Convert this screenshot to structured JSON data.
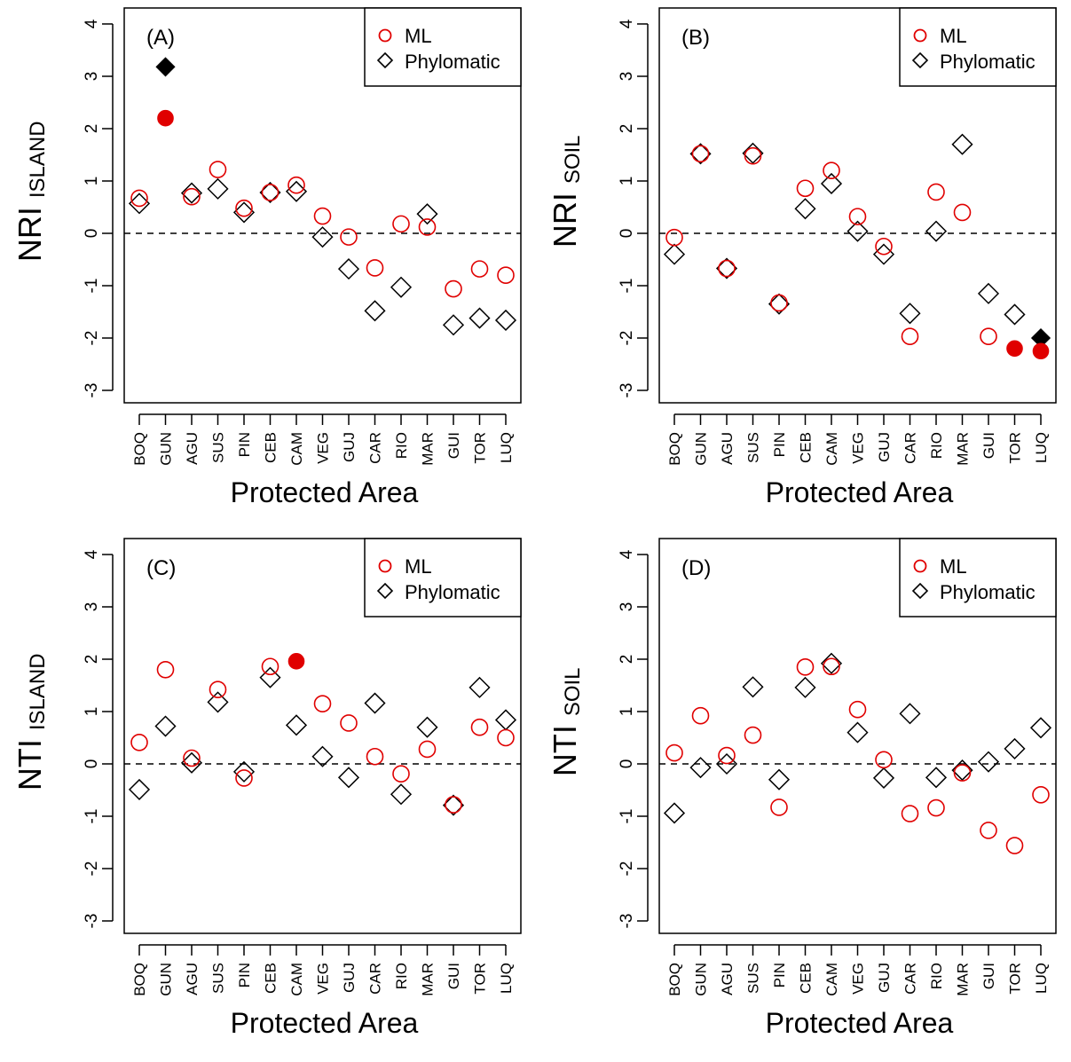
{
  "chart_data": [
    {
      "type": "scatter",
      "panel_label": "(A)",
      "ylabel_main": "NRI",
      "ylabel_sub": "ISLAND",
      "xlabel": "Protected Area",
      "ylim": [
        -3,
        4
      ],
      "yticks": [
        "-3",
        "-2",
        "-1",
        "0",
        "1",
        "2",
        "3",
        "4"
      ],
      "categories": [
        "BOQ",
        "GUN",
        "AGU",
        "SUS",
        "PIN",
        "CEB",
        "CAM",
        "VEG",
        "GUJ",
        "CAR",
        "RIO",
        "MAR",
        "GUI",
        "TOR",
        "LUQ"
      ],
      "legend": [
        "ML",
        "Phylomatic"
      ],
      "legend_position": "top-right",
      "reference_line": 0,
      "series": [
        {
          "name": "ML",
          "marker": "circle",
          "color": "#e00000",
          "values": [
            0.67,
            2.2,
            0.7,
            1.22,
            0.48,
            0.78,
            0.92,
            0.33,
            -0.07,
            -0.66,
            0.18,
            0.12,
            -1.06,
            -0.68,
            -0.8
          ],
          "filled": [
            false,
            true,
            false,
            false,
            false,
            false,
            false,
            false,
            false,
            false,
            false,
            false,
            false,
            false,
            false
          ]
        },
        {
          "name": "Phylomatic",
          "marker": "diamond",
          "color": "#000000",
          "values": [
            0.57,
            3.18,
            0.77,
            0.85,
            0.4,
            0.78,
            0.8,
            -0.07,
            -0.68,
            -1.48,
            -1.03,
            0.37,
            -1.75,
            -1.62,
            -1.66
          ],
          "filled": [
            false,
            true,
            false,
            false,
            false,
            false,
            false,
            false,
            false,
            false,
            false,
            false,
            false,
            false,
            false
          ]
        }
      ]
    },
    {
      "type": "scatter",
      "panel_label": "(B)",
      "ylabel_main": "NRI",
      "ylabel_sub": "SOIL",
      "xlabel": "Protected Area",
      "ylim": [
        -3,
        4
      ],
      "yticks": [
        "-3",
        "-2",
        "-1",
        "0",
        "1",
        "2",
        "3",
        "4"
      ],
      "categories": [
        "BOQ",
        "GUN",
        "AGU",
        "SUS",
        "PIN",
        "CEB",
        "CAM",
        "VEG",
        "GUJ",
        "CAR",
        "RIO",
        "MAR",
        "GUI",
        "TOR",
        "LUQ"
      ],
      "legend": [
        "ML",
        "Phylomatic"
      ],
      "legend_position": "top-right",
      "reference_line": 0,
      "series": [
        {
          "name": "ML",
          "marker": "circle",
          "color": "#e00000",
          "values": [
            -0.08,
            1.52,
            -0.67,
            1.48,
            -1.33,
            0.86,
            1.2,
            0.32,
            -0.25,
            -1.97,
            0.79,
            0.4,
            -1.97,
            -2.2,
            -2.25
          ],
          "filled": [
            false,
            false,
            false,
            false,
            false,
            false,
            false,
            false,
            false,
            false,
            false,
            false,
            false,
            true,
            true
          ]
        },
        {
          "name": "Phylomatic",
          "marker": "diamond",
          "color": "#000000",
          "values": [
            -0.4,
            1.52,
            -0.67,
            1.53,
            -1.35,
            0.47,
            0.95,
            0.04,
            -0.4,
            -1.53,
            0.04,
            1.7,
            -1.15,
            -1.55,
            -2.0
          ],
          "filled": [
            false,
            false,
            false,
            false,
            false,
            false,
            false,
            false,
            false,
            false,
            false,
            false,
            false,
            false,
            true
          ]
        }
      ]
    },
    {
      "type": "scatter",
      "panel_label": "(C)",
      "ylabel_main": "NTI",
      "ylabel_sub": "ISLAND",
      "xlabel": "Protected Area",
      "ylim": [
        -3,
        4
      ],
      "yticks": [
        "-3",
        "-2",
        "-1",
        "0",
        "1",
        "2",
        "3",
        "4"
      ],
      "categories": [
        "BOQ",
        "GUN",
        "AGU",
        "SUS",
        "PIN",
        "CEB",
        "CAM",
        "VEG",
        "GUJ",
        "CAR",
        "RIO",
        "MAR",
        "GUI",
        "TOR",
        "LUQ"
      ],
      "legend": [
        "ML",
        "Phylomatic"
      ],
      "legend_position": "top-right",
      "reference_line": 0,
      "series": [
        {
          "name": "ML",
          "marker": "circle",
          "color": "#e00000",
          "values": [
            0.41,
            1.8,
            0.11,
            1.42,
            -0.27,
            1.86,
            1.96,
            1.15,
            0.78,
            0.14,
            -0.19,
            0.28,
            -0.78,
            0.7,
            0.5
          ],
          "filled": [
            false,
            false,
            false,
            false,
            false,
            false,
            true,
            false,
            false,
            false,
            false,
            false,
            false,
            false,
            false
          ]
        },
        {
          "name": "Phylomatic",
          "marker": "diamond",
          "color": "#000000",
          "values": [
            -0.49,
            0.72,
            0.02,
            1.18,
            -0.15,
            1.65,
            0.74,
            0.14,
            -0.26,
            1.16,
            -0.58,
            0.7,
            -0.79,
            1.46,
            0.84
          ],
          "filled": [
            false,
            false,
            false,
            false,
            false,
            false,
            false,
            false,
            false,
            false,
            false,
            false,
            false,
            false,
            false
          ]
        }
      ]
    },
    {
      "type": "scatter",
      "panel_label": "(D)",
      "ylabel_main": "NTI",
      "ylabel_sub": "SOIL",
      "xlabel": "Protected Area",
      "ylim": [
        -3,
        4
      ],
      "yticks": [
        "-3",
        "-2",
        "-1",
        "0",
        "1",
        "2",
        "3",
        "4"
      ],
      "categories": [
        "BOQ",
        "GUN",
        "AGU",
        "SUS",
        "PIN",
        "CEB",
        "CAM",
        "VEG",
        "GUJ",
        "CAR",
        "RIO",
        "MAR",
        "GUI",
        "TOR",
        "LUQ"
      ],
      "legend": [
        "ML",
        "Phylomatic"
      ],
      "legend_position": "top-right",
      "reference_line": 0,
      "series": [
        {
          "name": "ML",
          "marker": "circle",
          "color": "#e00000",
          "values": [
            0.21,
            0.92,
            0.16,
            0.55,
            -0.83,
            1.85,
            1.86,
            1.04,
            0.08,
            -0.95,
            -0.84,
            -0.17,
            -1.27,
            -1.56,
            -0.59
          ],
          "filled": [
            false,
            false,
            false,
            false,
            false,
            false,
            false,
            false,
            false,
            false,
            false,
            false,
            false,
            false,
            false
          ]
        },
        {
          "name": "Phylomatic",
          "marker": "diamond",
          "color": "#000000",
          "values": [
            -0.94,
            -0.07,
            0.0,
            1.47,
            -0.3,
            1.46,
            1.92,
            0.6,
            -0.27,
            0.96,
            -0.26,
            -0.12,
            0.04,
            0.29,
            0.69
          ],
          "filled": [
            false,
            false,
            false,
            false,
            false,
            false,
            false,
            false,
            false,
            false,
            false,
            false,
            false,
            false,
            false
          ]
        }
      ]
    }
  ]
}
